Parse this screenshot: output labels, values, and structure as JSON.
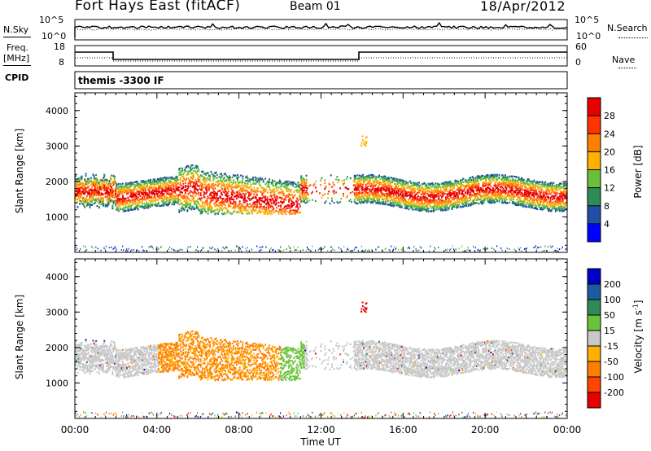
{
  "header": {
    "station": "Fort Hays East (fitACF)",
    "beam": "Beam 01",
    "date": "18/Apr/2012"
  },
  "noise_panel": {
    "left_label": "N.Sky",
    "right_label": "N.Search",
    "left_ticks": [
      "10^5",
      "10^0"
    ],
    "right_ticks": [
      "10^5",
      "10^0"
    ]
  },
  "freq_panel": {
    "left_label_line1": "Freq.",
    "left_label_line2": "[MHz]",
    "left_ticks": [
      "18",
      "8"
    ],
    "right_label": "Nave",
    "right_ticks": [
      "60",
      "0"
    ],
    "cpid_label": "CPID",
    "cpid_text": "themis -3300 IF"
  },
  "colors": {
    "power": [
      "#0000ff",
      "#1f4fa6",
      "#2e8b57",
      "#6bbf3a",
      "#ffb000",
      "#ff7f00",
      "#ff3300",
      "#e60000"
    ],
    "velocity": [
      "#0000c8",
      "#1e5aa0",
      "#2e8b57",
      "#6cc33a",
      "#c8c8c8",
      "#ffb000",
      "#ff7f00",
      "#ff4500",
      "#e60000"
    ]
  },
  "chart_data": [
    {
      "type": "heatmap",
      "quantity": "power",
      "ylabel": "Slant Range [km]",
      "xlim": [
        "00:00",
        "24:00"
      ],
      "ylim": [
        0,
        4500
      ],
      "yticks": [
        1000,
        2000,
        3000,
        4000
      ],
      "colorbar_label": "Power [dB]",
      "colorbar_ticks": [
        "4",
        "8",
        "12",
        "16",
        "20",
        "24",
        "28"
      ],
      "colorbar_range": [
        0,
        32
      ]
    },
    {
      "type": "heatmap",
      "quantity": "velocity",
      "ylabel": "Slant Range [km]",
      "xlabel": "Time UT",
      "xlim": [
        "00:00",
        "24:00"
      ],
      "ylim": [
        0,
        4500
      ],
      "yticks": [
        1000,
        2000,
        3000,
        4000
      ],
      "xticks": [
        "00:00",
        "04:00",
        "08:00",
        "12:00",
        "16:00",
        "20:00",
        "00:00"
      ],
      "colorbar_label": "Velocity [m s^-1]",
      "colorbar_ticks": [
        "200",
        "100",
        "50",
        "15",
        "-15",
        "-50",
        "-100",
        "-200"
      ]
    }
  ]
}
